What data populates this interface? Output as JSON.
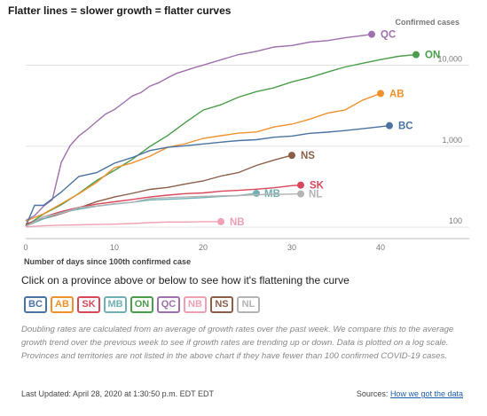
{
  "title": "Flatter lines = slower growth = flatter curves",
  "prompt": "Click on a province above or below to see how it's flattening the curve",
  "note": "Doubling rates are calculated from an average of growth rates over the past week. We compare this to the average growth trend over the previous week to see if growth rates are trending up or down. Data is plotted on a log scale. Provinces and territories are not listed in the above chart if they have fewer than 100 confirmed COVID-19 cases.",
  "footer": {
    "updated": "Last Updated: April 28, 2020 at 1:30:50 p.m. EDT EDT",
    "sources_label": "Sources:",
    "sources_link": "How we got the data"
  },
  "colors": {
    "BC": "#4a72a2",
    "AB": "#f0912e",
    "SK": "#d9475b",
    "MB": "#6fb0b5",
    "ON": "#4a9e4a",
    "QC": "#a06fae",
    "NB": "#f0a0b4",
    "NS": "#8c5e48",
    "NL": "#b3b3b3"
  },
  "buttons": [
    "BC",
    "AB",
    "SK",
    "MB",
    "ON",
    "QC",
    "NB",
    "NS",
    "NL"
  ],
  "chart_data": {
    "type": "line",
    "title": "Flatter lines = slower growth = flatter curves",
    "xlabel": "Number of days since 100th confirmed case",
    "ylabel": "Confirmed cases",
    "y_scale": "log",
    "xlim": [
      0,
      50
    ],
    "ylim": [
      80,
      30000
    ],
    "x_ticks": [
      0,
      10,
      20,
      30,
      40
    ],
    "y_ticks": [
      100,
      1000,
      10000
    ],
    "y_tick_labels": [
      "100",
      "1,000",
      "10,000"
    ],
    "grid": true,
    "series": [
      {
        "name": "QC",
        "x": [
          0,
          1,
          2,
          3,
          4,
          5,
          6,
          7,
          8,
          9,
          10,
          11,
          12,
          13,
          14,
          15,
          16,
          17,
          18,
          19,
          20,
          22,
          24,
          26,
          28,
          30,
          32,
          34,
          36,
          38,
          39
        ],
        "values": [
          121,
          139,
          181,
          219,
          628,
          1013,
          1342,
          1629,
          2021,
          2498,
          2840,
          3430,
          4162,
          4611,
          5518,
          6101,
          6997,
          7944,
          8580,
          9340,
          10031,
          11677,
          13557,
          14860,
          16798,
          17521,
          19319,
          20126,
          21838,
          23267,
          24107
        ]
      },
      {
        "name": "ON",
        "x": [
          0,
          2,
          4,
          6,
          8,
          10,
          12,
          14,
          16,
          18,
          20,
          22,
          24,
          26,
          28,
          30,
          32,
          34,
          36,
          38,
          40,
          42,
          44
        ],
        "values": [
          103,
          145,
          189,
          262,
          377,
          503,
          688,
          993,
          1355,
          1966,
          2793,
          3255,
          4038,
          4726,
          5276,
          6237,
          7049,
          8225,
          9525,
          10578,
          11735,
          12879,
          13519
        ]
      },
      {
        "name": "AB",
        "x": [
          0,
          2,
          4,
          6,
          8,
          10,
          12,
          14,
          16,
          18,
          20,
          22,
          24,
          26,
          28,
          30,
          32,
          34,
          36,
          38,
          40
        ],
        "values": [
          119,
          146,
          195,
          259,
          358,
          542,
          621,
          754,
          968,
          1075,
          1250,
          1348,
          1451,
          1500,
          1732,
          1870,
          2158,
          2562,
          2803,
          3720,
          4480
        ]
      },
      {
        "name": "BC",
        "x": [
          0,
          1,
          2,
          4,
          6,
          8,
          10,
          12,
          14,
          16,
          18,
          20,
          22,
          24,
          26,
          28,
          30,
          32,
          34,
          36,
          38,
          41
        ],
        "values": [
          103,
          186,
          186,
          271,
          424,
          472,
          617,
          725,
          884,
          970,
          1013,
          1066,
          1121,
          1174,
          1203,
          1291,
          1336,
          1445,
          1490,
          1561,
          1647,
          1795
        ]
      },
      {
        "name": "NS",
        "x": [
          0,
          2,
          4,
          6,
          8,
          10,
          12,
          14,
          16,
          18,
          20,
          22,
          24,
          26,
          28,
          30
        ],
        "values": [
          110,
          127,
          147,
          173,
          207,
          236,
          262,
          293,
          310,
          342,
          373,
          428,
          474,
          579,
          675,
          772
        ]
      },
      {
        "name": "SK",
        "x": [
          0,
          2,
          4,
          6,
          8,
          10,
          12,
          14,
          16,
          18,
          20,
          22,
          24,
          26,
          28,
          30,
          31
        ],
        "values": [
          104,
          134,
          156,
          176,
          193,
          206,
          220,
          236,
          249,
          260,
          265,
          278,
          285,
          295,
          307,
          326,
          331
        ]
      },
      {
        "name": "MB",
        "x": [
          0,
          2,
          4,
          6,
          8,
          10,
          12,
          14,
          16,
          18,
          20,
          22,
          24,
          26
        ],
        "values": [
          103,
          127,
          152,
          167,
          182,
          193,
          203,
          217,
          221,
          226,
          232,
          240,
          246,
          262
        ]
      },
      {
        "name": "NL",
        "x": [
          0,
          2,
          4,
          6,
          8,
          10,
          12,
          14,
          16,
          18,
          20,
          22,
          24,
          26,
          28,
          31
        ],
        "values": [
          102,
          135,
          148,
          175,
          183,
          195,
          203,
          226,
          232,
          236,
          241,
          244,
          246,
          252,
          254,
          258
        ]
      },
      {
        "name": "NB",
        "x": [
          0,
          2,
          4,
          6,
          8,
          10,
          12,
          14,
          16,
          18,
          20,
          22
        ],
        "values": [
          101,
          104,
          106,
          107,
          108,
          109,
          111,
          114,
          116,
          116,
          117,
          117
        ]
      }
    ]
  }
}
